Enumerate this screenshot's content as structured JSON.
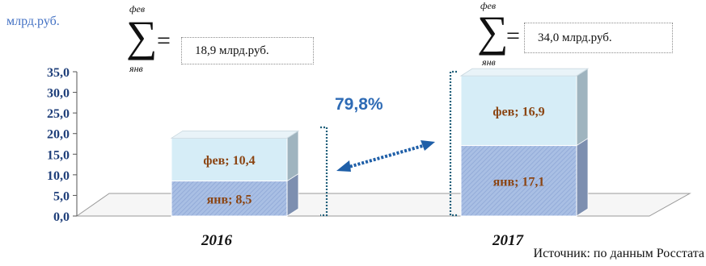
{
  "unit_label": "млрд.руб.",
  "source_note": "Источник: по данным Росстата",
  "growth_label": "79,8%",
  "sum_annotations": [
    {
      "upper_limit": "фев",
      "lower_limit": "янв",
      "sign": "∑",
      "equals": "=",
      "value_text": "18,9 млрд.руб."
    },
    {
      "upper_limit": "фев",
      "lower_limit": "янв",
      "sign": "∑",
      "equals": "=",
      "value_text": "34,0 млрд.руб."
    }
  ],
  "colors": {
    "feb_face": "#d6edf7",
    "jan_face": "#a9bfe4",
    "label_text": "#8b4513",
    "axis_text": "#1f3f7a",
    "arrow": "#1f5fa8"
  },
  "chart_data": {
    "type": "bar",
    "stacked": true,
    "three_d": true,
    "categories": [
      "2016",
      "2017"
    ],
    "series": [
      {
        "name": "янв",
        "values": [
          8.5,
          17.1
        ]
      },
      {
        "name": "фев",
        "values": [
          10.4,
          16.9
        ]
      }
    ],
    "data_labels": [
      [
        "янв; 8,5",
        "янв; 17,1"
      ],
      [
        "фев; 10,4",
        "фев; 16,9"
      ]
    ],
    "y_ticks": [
      "0,0",
      "5,0",
      "10,0",
      "15,0",
      "20,0",
      "25,0",
      "30,0",
      "35,0"
    ],
    "ylim": [
      0,
      35
    ],
    "grid": false,
    "legend": "none",
    "title": "",
    "xlabel": "",
    "ylabel": ""
  }
}
